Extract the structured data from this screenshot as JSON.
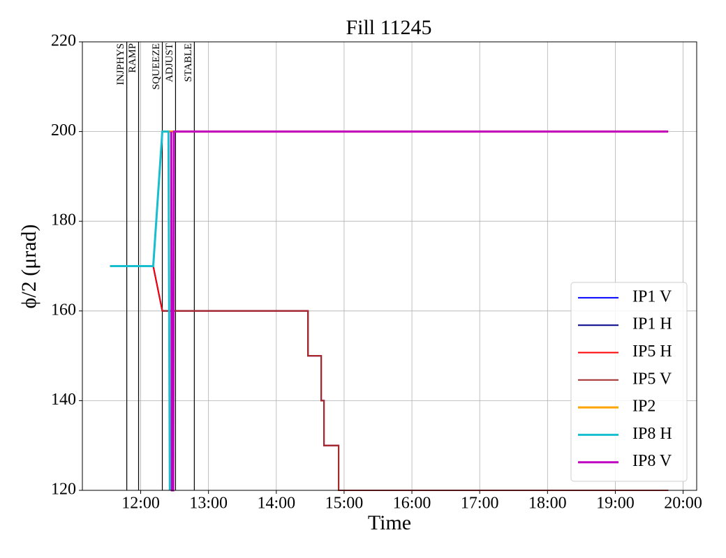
{
  "chart_data": {
    "type": "line",
    "title": "Fill 11245",
    "xlabel": "Time",
    "ylabel": "ϕ/2 (μrad)",
    "xlim": [
      11.14,
      20.2
    ],
    "ylim": [
      120,
      220
    ],
    "xticks": [
      {
        "value": 12,
        "label": "12:00"
      },
      {
        "value": 13,
        "label": "13:00"
      },
      {
        "value": 14,
        "label": "14:00"
      },
      {
        "value": 15,
        "label": "15:00"
      },
      {
        "value": 16,
        "label": "16:00"
      },
      {
        "value": 17,
        "label": "17:00"
      },
      {
        "value": 18,
        "label": "18:00"
      },
      {
        "value": 19,
        "label": "19:00"
      },
      {
        "value": 20,
        "label": "20:00"
      }
    ],
    "yticks": [
      120,
      140,
      160,
      180,
      200,
      220
    ],
    "grid": true,
    "legend": "lower right",
    "phases": [
      {
        "label": "INJPHYS",
        "x": 11.795
      },
      {
        "label": "RAMP",
        "x": 11.969
      },
      {
        "label": "SQUEEZE",
        "x": 12.319
      },
      {
        "label": "ADJUST",
        "x": 12.514
      },
      {
        "label": "STABLE",
        "x": 12.791
      }
    ],
    "series": [
      {
        "name": "IP1 V",
        "color": "#0000ff",
        "width": 2,
        "x": [
          11.548,
          12.185,
          12.319,
          14.467,
          14.467,
          14.662,
          14.662,
          14.703,
          14.703,
          14.919,
          14.919,
          19.78
        ],
        "values": [
          170,
          170,
          160,
          160,
          150,
          150,
          140,
          140,
          130,
          130,
          120,
          120
        ]
      },
      {
        "name": "IP1 H",
        "color": "#00008b",
        "width": 2,
        "x": [
          11.548,
          12.185,
          12.319,
          14.467,
          14.467,
          14.662,
          14.662,
          14.703,
          14.703,
          14.919,
          14.919,
          19.78
        ],
        "values": [
          170,
          170,
          160,
          160,
          150,
          150,
          140,
          140,
          130,
          130,
          120,
          120
        ]
      },
      {
        "name": "IP5 H",
        "color": "#ff0000",
        "width": 2,
        "x": [
          11.548,
          12.185,
          12.319,
          14.467,
          14.467,
          14.662,
          14.662,
          14.703,
          14.703,
          14.919,
          14.919,
          19.78
        ],
        "values": [
          170,
          170,
          160,
          160,
          150,
          150,
          140,
          140,
          130,
          130,
          120,
          120
        ]
      },
      {
        "name": "IP5 V",
        "color": "#a52a2a",
        "width": 2,
        "x": [
          12.319,
          14.467,
          14.467,
          14.662,
          14.662,
          14.703,
          14.703,
          14.919,
          14.919,
          19.78
        ],
        "values": [
          160,
          160,
          150,
          150,
          140,
          140,
          130,
          130,
          120,
          120
        ]
      },
      {
        "name": "IP2",
        "color": "#ffa500",
        "width": 3,
        "x": [
          12.319,
          19.78
        ],
        "values": [
          200,
          200
        ]
      },
      {
        "name": "IP8 H",
        "color": "#17becf",
        "width": 3,
        "x": [
          11.548,
          12.185,
          12.319,
          12.41,
          12.43
        ],
        "values": [
          170,
          170,
          200,
          200,
          120
        ]
      },
      {
        "name": "IP8 V",
        "color": "#c000c0",
        "width": 3,
        "x": [
          12.45,
          12.46,
          12.48,
          12.49,
          19.78
        ],
        "values": [
          200,
          120,
          120,
          200,
          200
        ]
      }
    ]
  }
}
